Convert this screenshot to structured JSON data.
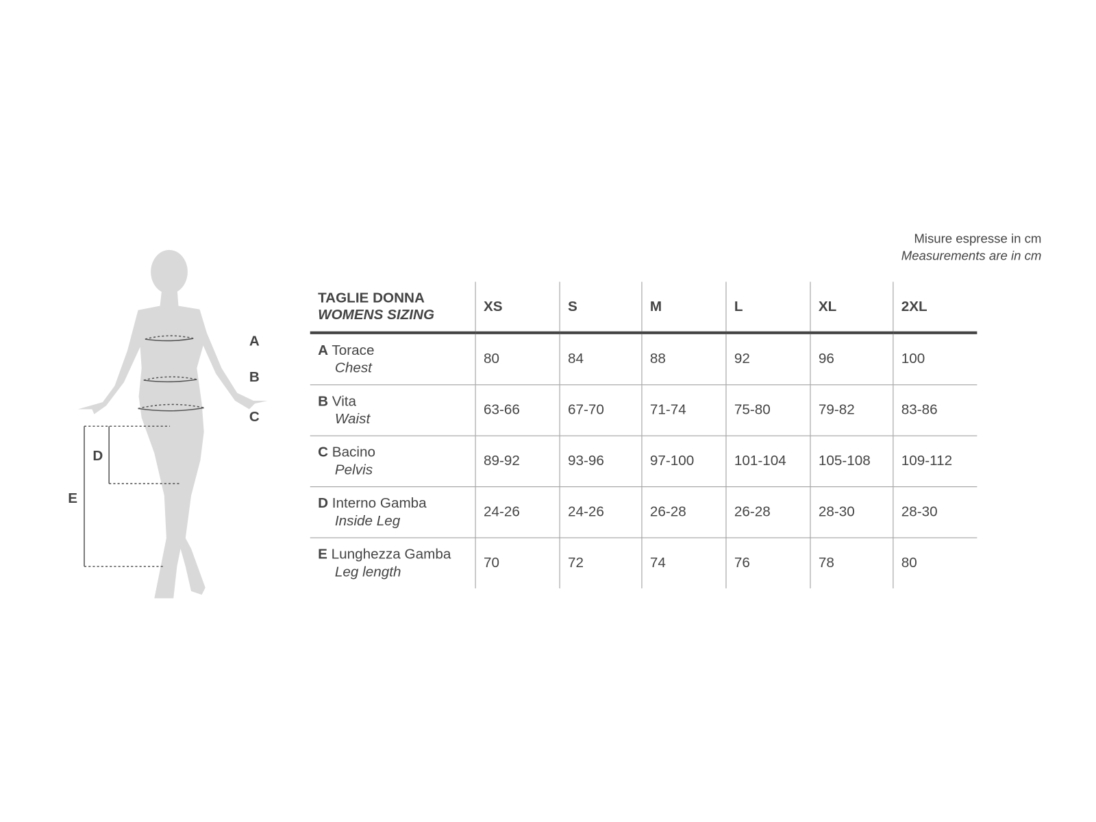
{
  "note": {
    "it": "Misure espresse in cm",
    "en": "Measurements are in cm"
  },
  "figure": {
    "labels": [
      "A",
      "B",
      "C",
      "D",
      "E"
    ],
    "silhouette_color": "#d9d9d9"
  },
  "table": {
    "title_it": "TAGLIE DONNA",
    "title_en": "WOMENS SIZING",
    "sizes": [
      "XS",
      "S",
      "M",
      "L",
      "XL",
      "2XL"
    ],
    "rows": [
      {
        "letter": "A",
        "it": "Torace",
        "en": "Chest",
        "values": [
          "80",
          "84",
          "88",
          "92",
          "96",
          "100"
        ]
      },
      {
        "letter": "B",
        "it": "Vita",
        "en": "Waist",
        "values": [
          "63-66",
          "67-70",
          "71-74",
          "75-80",
          "79-82",
          "83-86"
        ]
      },
      {
        "letter": "C",
        "it": "Bacino",
        "en": "Pelvis",
        "values": [
          "89-92",
          "93-96",
          "97-100",
          "101-104",
          "105-108",
          "109-112"
        ]
      },
      {
        "letter": "D",
        "it": "Interno Gamba",
        "en": "Inside Leg",
        "values": [
          "24-26",
          "24-26",
          "26-28",
          "26-28",
          "28-30",
          "28-30"
        ]
      },
      {
        "letter": "E",
        "it": "Lunghezza Gamba",
        "en": "Leg length",
        "values": [
          "70",
          "72",
          "74",
          "76",
          "78",
          "80"
        ]
      }
    ]
  }
}
